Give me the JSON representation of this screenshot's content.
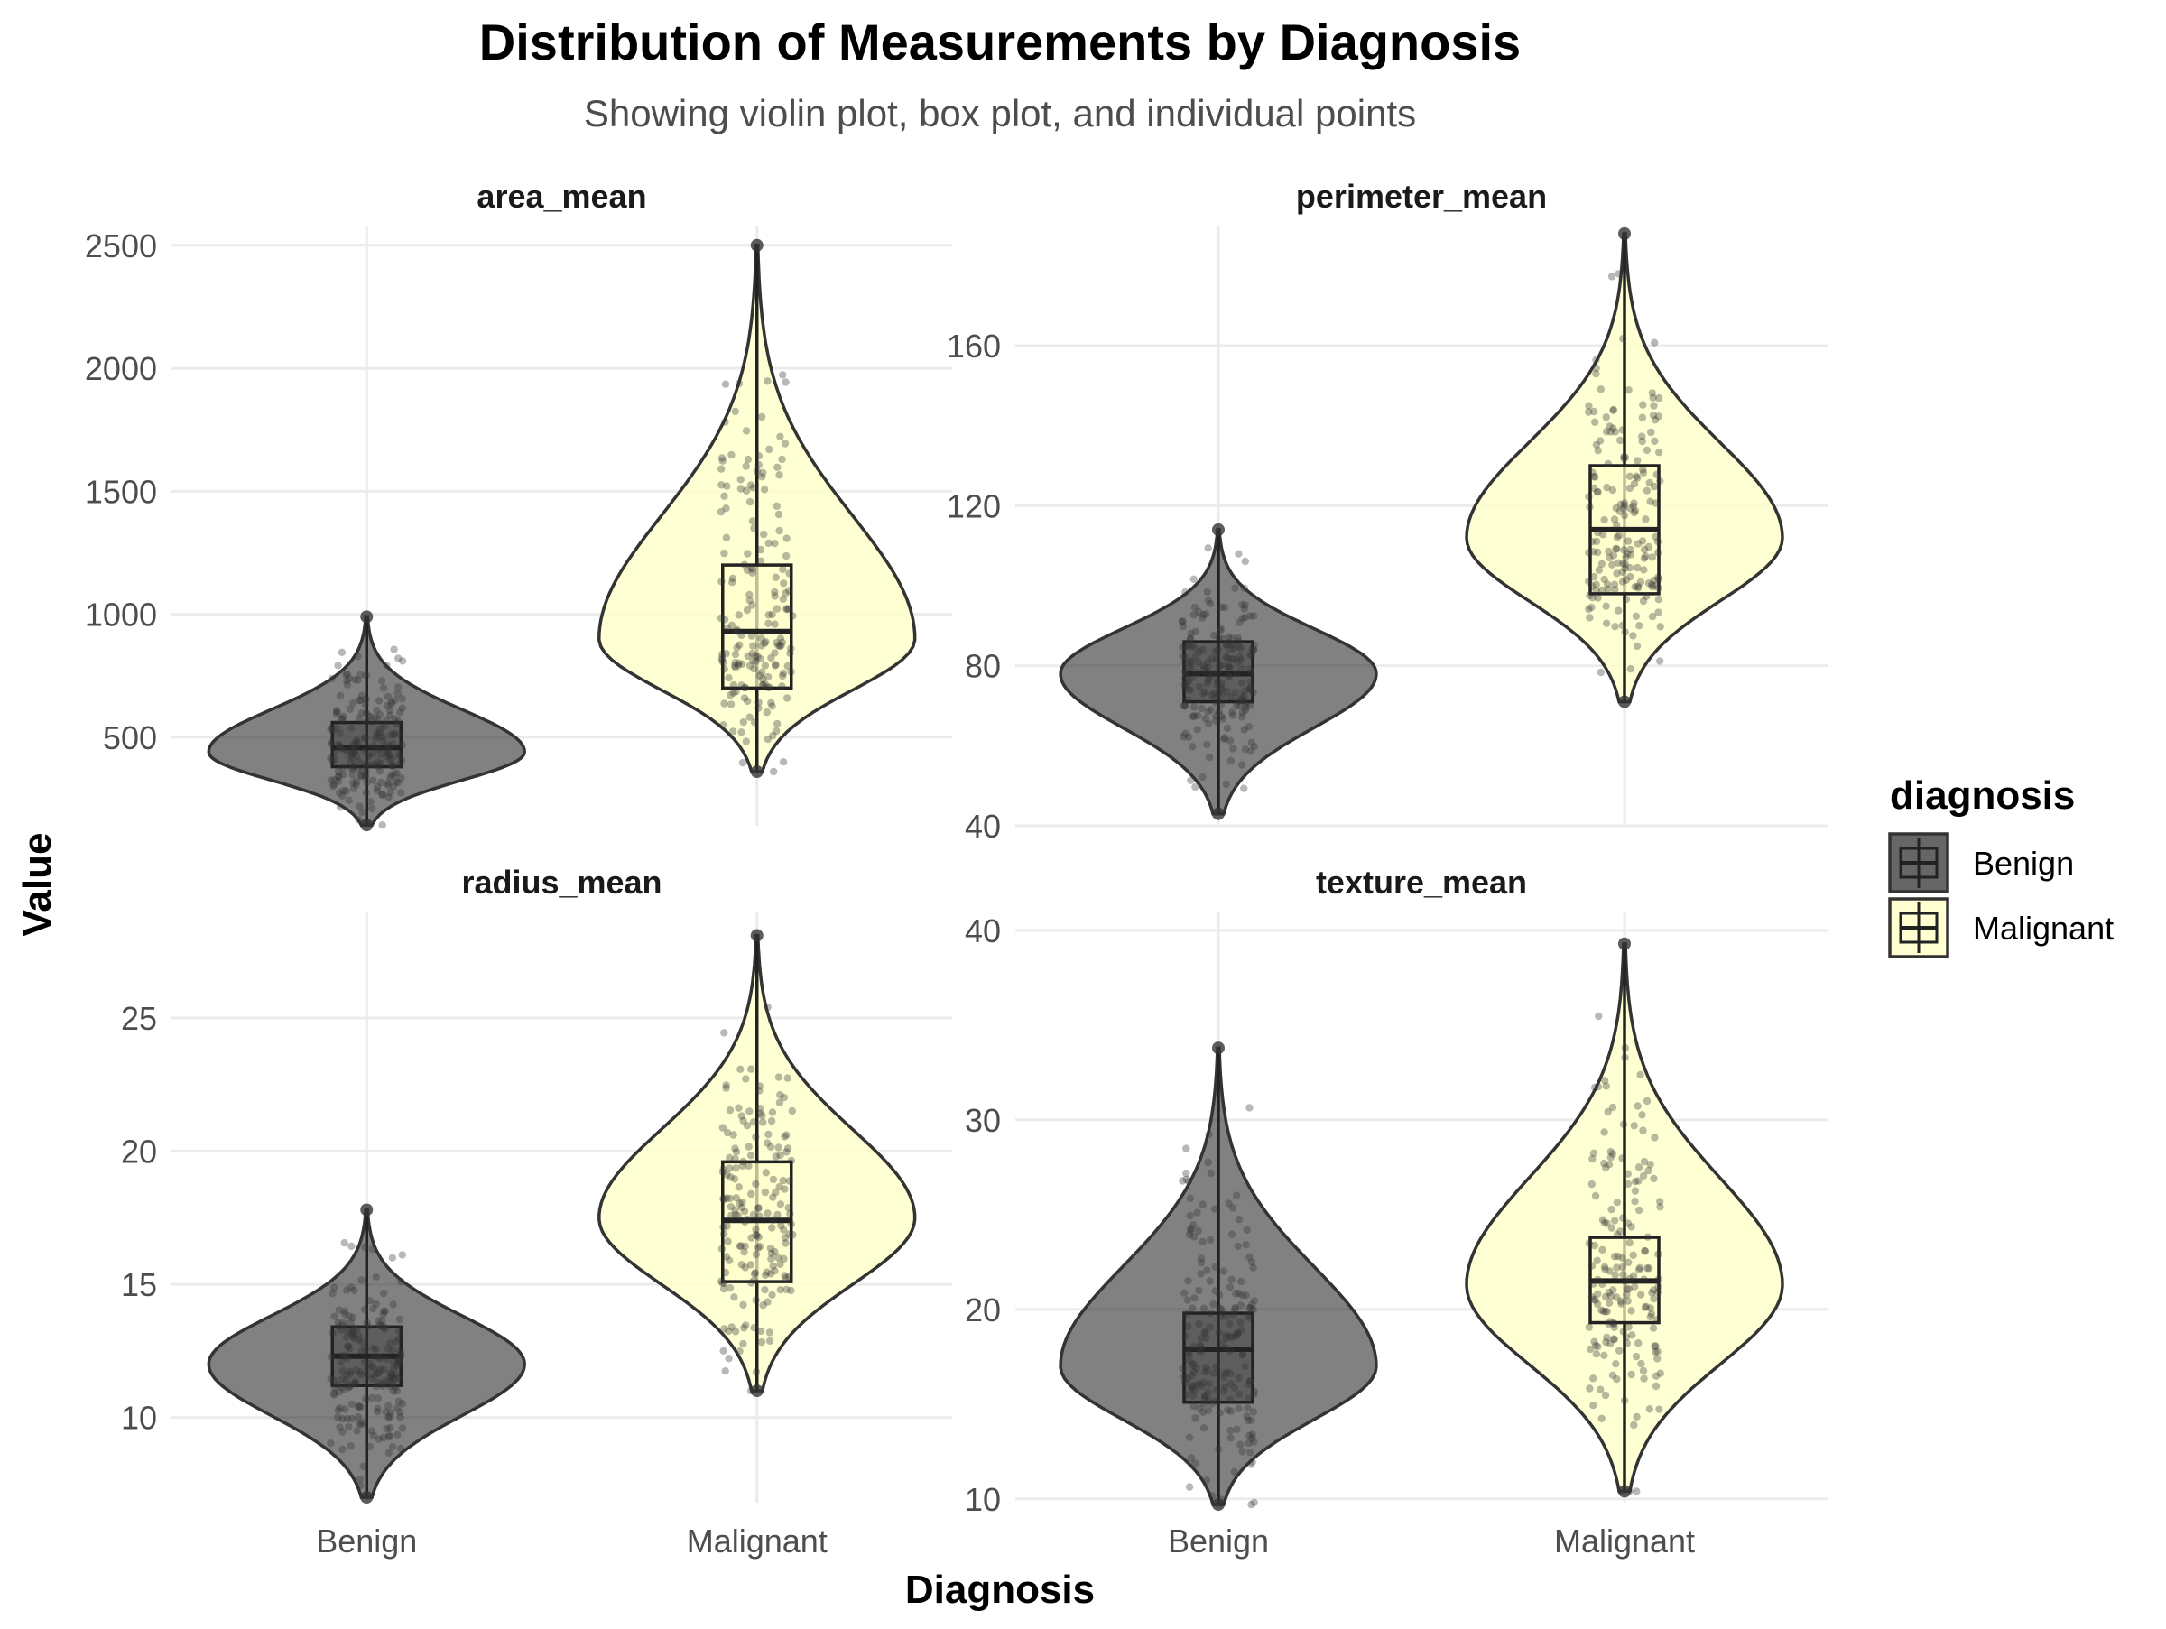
{
  "chart_data": {
    "type": "violin",
    "title": "Distribution of Measurements by Diagnosis",
    "subtitle": "Showing violin plot, box plot, and individual points",
    "xlabel": "Diagnosis",
    "ylabel": "Value",
    "categories": [
      "Benign",
      "Malignant"
    ],
    "grid": true,
    "legend": {
      "title": "diagnosis",
      "position": "right",
      "entries": [
        {
          "name": "Benign",
          "color": "#333333"
        },
        {
          "name": "Malignant",
          "color": "#ffffcc"
        }
      ]
    },
    "colors": {
      "Benign": "#333333",
      "Malignant": "#ffffcc",
      "outline": "#333333"
    },
    "panels": [
      {
        "name": "area_mean",
        "ylim": [
          140,
          2580
        ],
        "yticks": [
          500,
          1000,
          1500,
          2000,
          2500
        ],
        "groups": [
          {
            "category": "Benign",
            "min": 143,
            "q1": 380,
            "median": 458,
            "q3": 560,
            "max": 990,
            "mode": 440,
            "n": 200
          },
          {
            "category": "Malignant",
            "min": 360,
            "q1": 700,
            "median": 930,
            "q3": 1200,
            "max": 2500,
            "mode": 900,
            "n": 180
          }
        ]
      },
      {
        "name": "perimeter_mean",
        "ylim": [
          40,
          190
        ],
        "yticks": [
          40,
          80,
          120,
          160
        ],
        "groups": [
          {
            "category": "Benign",
            "min": 43,
            "q1": 71,
            "median": 78,
            "q3": 86,
            "max": 114,
            "mode": 78,
            "n": 200
          },
          {
            "category": "Malignant",
            "min": 71,
            "q1": 98,
            "median": 114,
            "q3": 130,
            "max": 188,
            "mode": 112,
            "n": 180
          }
        ]
      },
      {
        "name": "radius_mean",
        "ylim": [
          6.8,
          29
        ],
        "yticks": [
          10,
          15,
          20,
          25
        ],
        "groups": [
          {
            "category": "Benign",
            "min": 7,
            "q1": 11.2,
            "median": 12.3,
            "q3": 13.4,
            "max": 17.8,
            "mode": 12,
            "n": 200
          },
          {
            "category": "Malignant",
            "min": 11,
            "q1": 15.1,
            "median": 17.4,
            "q3": 19.6,
            "max": 28.1,
            "mode": 17.5,
            "n": 180
          }
        ]
      },
      {
        "name": "texture_mean",
        "ylim": [
          9.8,
          41
        ],
        "yticks": [
          10,
          20,
          30,
          40
        ],
        "groups": [
          {
            "category": "Benign",
            "min": 9.7,
            "q1": 15.1,
            "median": 17.9,
            "q3": 19.8,
            "max": 33.8,
            "mode": 17,
            "n": 200
          },
          {
            "category": "Malignant",
            "min": 10.4,
            "q1": 19.3,
            "median": 21.5,
            "q3": 23.8,
            "max": 39.3,
            "mode": 21.3,
            "n": 180
          }
        ]
      }
    ]
  }
}
